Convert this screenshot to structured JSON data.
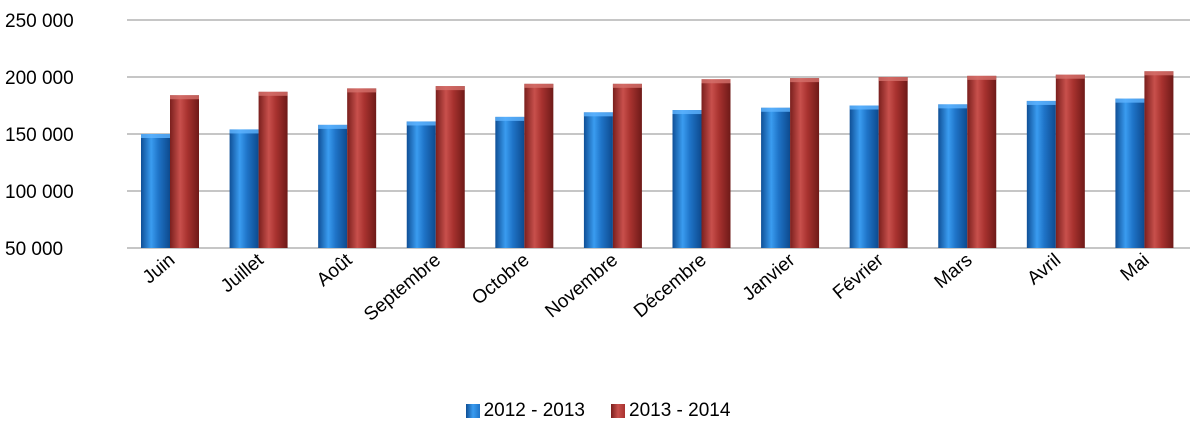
{
  "chart_data": {
    "type": "bar",
    "title": "",
    "xlabel": "",
    "ylabel": "",
    "categories": [
      "Juin",
      "Juillet",
      "Août",
      "Septembre",
      "Octobre",
      "Novembre",
      "Décembre",
      "Janvier",
      "Février",
      "Mars",
      "Avril",
      "Mai"
    ],
    "series": [
      {
        "name": "2012 - 2013",
        "color": "#1f74c8",
        "values": [
          150000,
          154000,
          158000,
          161000,
          165000,
          169000,
          171000,
          173000,
          175000,
          176000,
          179000,
          181000
        ]
      },
      {
        "name": "2013 - 2014",
        "color": "#a8322f",
        "values": [
          184000,
          187000,
          190000,
          192000,
          194000,
          194000,
          198000,
          199000,
          200000,
          201000,
          202000,
          205000
        ]
      }
    ],
    "ylim": [
      50000,
      250000
    ],
    "yticks": [
      "250 000",
      "200 000",
      "150 000",
      "100 000",
      "50 000"
    ],
    "ytick_values": [
      250000,
      200000,
      150000,
      100000,
      50000
    ],
    "grid": true,
    "legend_position": "bottom"
  }
}
